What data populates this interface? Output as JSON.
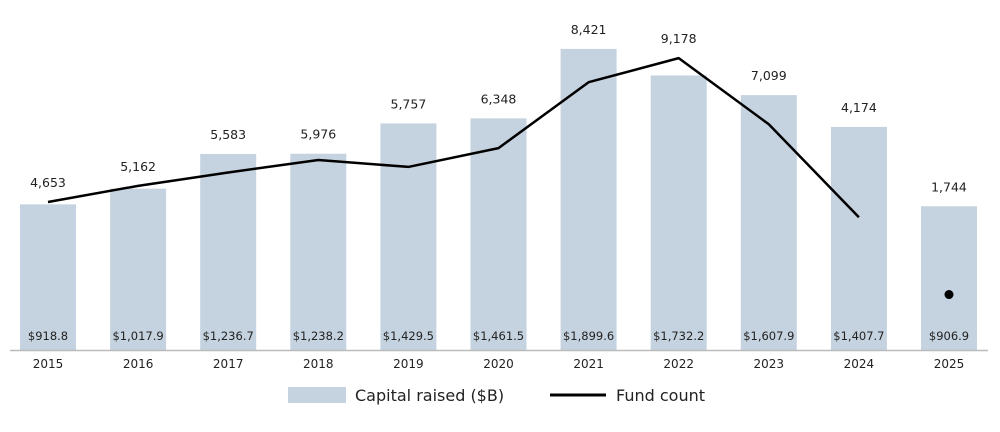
{
  "chart_data": {
    "type": "bar+line",
    "categories": [
      "2015",
      "2016",
      "2017",
      "2018",
      "2019",
      "2020",
      "2021",
      "2022",
      "2023",
      "2024",
      "2025"
    ],
    "series": [
      {
        "name": "Capital raised ($B)",
        "type": "bar",
        "color": "#c5d2df",
        "values": [
          918.8,
          1017.9,
          1236.7,
          1238.2,
          1429.5,
          1461.5,
          1899.6,
          1732.2,
          1607.9,
          1407.7,
          906.9
        ],
        "labels": [
          "$918.8",
          "$1,017.9",
          "$1,236.7",
          "$1,238.2",
          "$1,429.5",
          "$1,461.5",
          "$1,899.6",
          "$1,732.2",
          "$1,607.9",
          "$1,407.7",
          "$906.9"
        ]
      },
      {
        "name": "Fund count",
        "type": "line",
        "color": "#000000",
        "values": [
          4653,
          5162,
          5583,
          5976,
          5757,
          6348,
          8421,
          9178,
          7099,
          4174,
          1744
        ],
        "labels": [
          "4,653",
          "5,162",
          "5,583",
          "5,976",
          "5,757",
          "6,348",
          "8,421",
          "9,178",
          "7,099",
          "4,174",
          "1,744"
        ],
        "line_through": "2015-2024",
        "marker_only": "2025"
      }
    ],
    "legend_position": "bottom",
    "grid": false
  }
}
